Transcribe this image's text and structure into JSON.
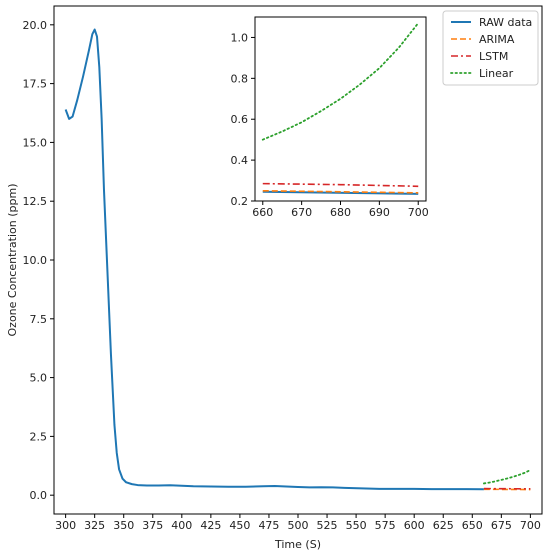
{
  "chart_data": [
    {
      "type": "line",
      "title": "",
      "xlabel": "Time (S)",
      "ylabel": "Ozone Concentration (ppm)",
      "xlim": [
        290,
        710
      ],
      "ylim": [
        -0.8,
        20.8
      ],
      "xticks": [
        300,
        325,
        350,
        375,
        400,
        425,
        450,
        475,
        500,
        525,
        550,
        575,
        600,
        625,
        650,
        675,
        700
      ],
      "yticks": [
        0.0,
        2.5,
        5.0,
        7.5,
        10.0,
        12.5,
        15.0,
        17.5,
        20.0
      ],
      "xtick_labels": [
        "300",
        "325",
        "350",
        "375",
        "400",
        "425",
        "450",
        "475",
        "500",
        "525",
        "550",
        "575",
        "600",
        "625",
        "650",
        "675",
        "700"
      ],
      "ytick_labels": [
        "0.0",
        "2.5",
        "5.0",
        "7.5",
        "10.0",
        "12.5",
        "15.0",
        "17.5",
        "20.0"
      ],
      "grid": false,
      "legend": "top-right",
      "series": [
        {
          "name": "RAW data",
          "color": "#1f77b4",
          "style": "solid",
          "points": [
            [
              300,
              16.4
            ],
            [
              303,
              16.0
            ],
            [
              306,
              16.1
            ],
            [
              310,
              16.8
            ],
            [
              315,
              17.8
            ],
            [
              320,
              18.9
            ],
            [
              323,
              19.6
            ],
            [
              325,
              19.8
            ],
            [
              327,
              19.5
            ],
            [
              329,
              18.2
            ],
            [
              331,
              16.0
            ],
            [
              333,
              13.0
            ],
            [
              336,
              9.5
            ],
            [
              339,
              6.0
            ],
            [
              342,
              3.0
            ],
            [
              344,
              1.8
            ],
            [
              346,
              1.1
            ],
            [
              349,
              0.7
            ],
            [
              352,
              0.55
            ],
            [
              357,
              0.47
            ],
            [
              362,
              0.43
            ],
            [
              370,
              0.41
            ],
            [
              380,
              0.41
            ],
            [
              390,
              0.42
            ],
            [
              400,
              0.4
            ],
            [
              410,
              0.38
            ],
            [
              425,
              0.37
            ],
            [
              440,
              0.36
            ],
            [
              455,
              0.36
            ],
            [
              470,
              0.38
            ],
            [
              480,
              0.39
            ],
            [
              490,
              0.37
            ],
            [
              500,
              0.35
            ],
            [
              510,
              0.33
            ],
            [
              520,
              0.34
            ],
            [
              530,
              0.33
            ],
            [
              540,
              0.31
            ],
            [
              555,
              0.29
            ],
            [
              570,
              0.27
            ],
            [
              585,
              0.27
            ],
            [
              600,
              0.27
            ],
            [
              615,
              0.26
            ],
            [
              630,
              0.26
            ],
            [
              645,
              0.26
            ],
            [
              660,
              0.25
            ]
          ]
        },
        {
          "name": "ARIMA",
          "color": "#ff7f0e",
          "style": "dashed",
          "points": [
            [
              660,
              0.25
            ],
            [
              680,
              0.245
            ],
            [
              700,
              0.24
            ]
          ]
        },
        {
          "name": "LSTM",
          "color": "#d62728",
          "style": "dashdot",
          "points": [
            [
              660,
              0.28
            ],
            [
              680,
              0.275
            ],
            [
              700,
              0.27
            ]
          ]
        },
        {
          "name": "Linear",
          "color": "#2ca02c",
          "style": "dotted",
          "points": [
            [
              660,
              0.5
            ],
            [
              665,
              0.54
            ],
            [
              670,
              0.59
            ],
            [
              675,
              0.65
            ],
            [
              680,
              0.71
            ],
            [
              685,
              0.78
            ],
            [
              690,
              0.86
            ],
            [
              695,
              0.95
            ],
            [
              700,
              1.07
            ]
          ]
        }
      ]
    },
    {
      "type": "line",
      "title": "",
      "xlabel": "",
      "ylabel": "",
      "xlim": [
        658,
        702
      ],
      "ylim": [
        0.2,
        1.1
      ],
      "xticks": [
        660,
        670,
        680,
        690,
        700
      ],
      "yticks": [
        0.2,
        0.4,
        0.6,
        0.8,
        1.0
      ],
      "xtick_labels": [
        "660",
        "670",
        "680",
        "690",
        "700"
      ],
      "ytick_labels": [
        "0.2",
        "0.4",
        "0.6",
        "0.8",
        "1.0"
      ],
      "grid": false,
      "series": [
        {
          "color": "#1f77b4",
          "style": "solid",
          "points": [
            [
              660,
              0.245
            ],
            [
              700,
              0.235
            ]
          ]
        },
        {
          "color": "#ff7f0e",
          "style": "dashed",
          "points": [
            [
              660,
              0.25
            ],
            [
              700,
              0.24
            ]
          ]
        },
        {
          "color": "#d62728",
          "style": "dashdot",
          "points": [
            [
              660,
              0.285
            ],
            [
              680,
              0.28
            ],
            [
              700,
              0.272
            ]
          ]
        },
        {
          "color": "#2ca02c",
          "style": "dotted",
          "points": [
            [
              660,
              0.5
            ],
            [
              665,
              0.54
            ],
            [
              670,
              0.585
            ],
            [
              675,
              0.64
            ],
            [
              680,
              0.7
            ],
            [
              685,
              0.77
            ],
            [
              690,
              0.85
            ],
            [
              695,
              0.95
            ],
            [
              700,
              1.07
            ]
          ]
        }
      ]
    }
  ]
}
